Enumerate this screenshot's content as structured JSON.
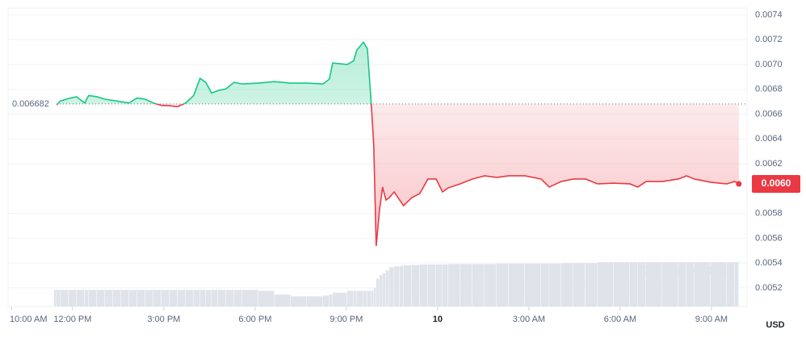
{
  "chart_data": {
    "type": "line",
    "x": [
      11.47,
      11.6,
      11.87,
      12.13,
      12.4,
      12.53,
      12.8,
      13.06,
      13.33,
      13.59,
      13.86,
      14.12,
      14.39,
      14.65,
      14.92,
      15.19,
      15.45,
      15.72,
      15.98,
      16.19,
      16.38,
      16.57,
      16.78,
      17.04,
      17.31,
      17.57,
      18.11,
      18.64,
      19.17,
      19.7,
      20.23,
      20.44,
      20.55,
      21.03,
      21.24,
      21.34,
      21.56,
      21.69,
      21.82,
      21.9,
      21.98,
      22.09,
      22.19,
      22.3,
      22.41,
      22.57,
      22.75,
      22.88,
      23.15,
      23.41,
      23.68,
      23.95,
      24.16,
      24.34,
      24.74,
      25.14,
      25.54,
      25.94,
      26.34,
      26.87,
      27.4,
      27.67,
      28.06,
      28.46,
      28.86,
      29.26,
      29.79,
      30.32,
      30.58,
      30.85,
      31.38,
      31.91,
      32.18,
      32.44,
      32.97,
      33.5,
      33.77,
      33.9
    ],
    "values": [
      0.006674,
      0.006706,
      0.006726,
      0.00674,
      0.00669,
      0.00675,
      0.00674,
      0.00672,
      0.00671,
      0.0067,
      0.00669,
      0.00673,
      0.00672,
      0.00669,
      0.00667,
      0.006668,
      0.00666,
      0.00669,
      0.00675,
      0.006888,
      0.006856,
      0.00677,
      0.00679,
      0.006804,
      0.006856,
      0.006843,
      0.00685,
      0.006862,
      0.00685,
      0.00685,
      0.006843,
      0.006882,
      0.007012,
      0.007,
      0.00703,
      0.007115,
      0.00718,
      0.007128,
      0.006674,
      0.006349,
      0.005538,
      0.00583,
      0.006012,
      0.005908,
      0.005927,
      0.005973,
      0.005908,
      0.005862,
      0.005927,
      0.005959,
      0.006077,
      0.006077,
      0.005973,
      0.006005,
      0.006038,
      0.006077,
      0.006103,
      0.00609,
      0.006103,
      0.006103,
      0.006077,
      0.006012,
      0.006057,
      0.006077,
      0.006077,
      0.006038,
      0.006044,
      0.006038,
      0.006012,
      0.006057,
      0.006057,
      0.006077,
      0.006103,
      0.006077,
      0.006051,
      0.006038,
      0.006057,
      0.006038
    ],
    "volume": [
      36,
      36,
      36,
      36,
      36,
      36,
      36,
      36,
      36,
      36,
      36,
      36,
      36,
      36,
      36,
      36,
      36,
      36,
      36,
      36,
      36,
      36,
      36,
      36,
      36,
      36,
      36,
      34,
      26,
      22,
      22,
      24,
      26,
      30,
      34,
      34,
      34,
      34,
      34,
      34,
      40,
      60,
      68,
      72,
      78,
      85,
      87,
      88,
      89,
      90,
      91,
      91,
      91,
      91,
      92,
      92,
      92,
      92,
      93,
      93,
      93,
      93,
      93,
      94,
      94,
      94,
      96,
      96,
      96,
      96,
      96,
      96,
      96,
      96,
      96,
      96,
      96,
      96
    ],
    "up_color": "#16c784",
    "down_color": "#ea3943",
    "baseline": 0.006682,
    "last_label": "0.0060",
    "xlim": [
      9.88,
      34.17
    ],
    "xticks": [
      {
        "value": 10,
        "label": "10:00 AM"
      },
      {
        "value": 12,
        "label": "12:00 PM"
      },
      {
        "value": 15,
        "label": "3:00 PM"
      },
      {
        "value": 18,
        "label": "6:00 PM"
      },
      {
        "value": 21,
        "label": "9:00 PM"
      },
      {
        "value": 24,
        "label": "10"
      },
      {
        "value": 27,
        "label": "3:00 AM"
      },
      {
        "value": 30,
        "label": "6:00 AM"
      },
      {
        "value": 33,
        "label": "9:00 AM"
      }
    ],
    "ylim": [
      0.00505,
      0.0075
    ],
    "yticks": [
      0.0074,
      0.0072,
      {
        "value": 0.007,
        "label": "0.0070"
      },
      0.0068,
      0.0066,
      0.0064,
      0.0062,
      0.0058,
      0.0056,
      0.0054,
      0.0052
    ],
    "grid": true,
    "y_unit": "USD",
    "watermark": "CoinMarketCap"
  }
}
